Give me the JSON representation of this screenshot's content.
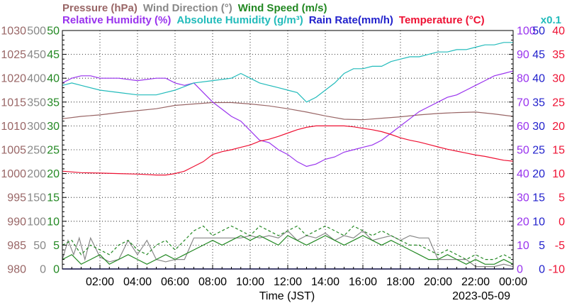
{
  "header": {
    "row1": [
      {
        "key": "pressure",
        "text": "Pressure (hPa)",
        "color": "#996666"
      },
      {
        "key": "wind_direction",
        "text": "Wind Direction (°)",
        "color": "#888888"
      },
      {
        "key": "wind_speed",
        "text": "Wind Speed (m/s)",
        "color": "#228822"
      }
    ],
    "row2": [
      {
        "key": "relative_humidity",
        "text": "Relative Humidity (%)",
        "color": "#9933ee"
      },
      {
        "key": "absolute_humidity",
        "text": "Absolute Humidity (g/m³)",
        "color": "#22bbbb"
      },
      {
        "key": "rain_rate",
        "text": "Rain Rate(mm/h)",
        "color": "#2222cc"
      },
      {
        "key": "temperature",
        "text": "Temperature (°C)",
        "color": "#ee1133"
      },
      {
        "key": "absolute_humidity_scale",
        "text": "x0.1",
        "color": "#22bbbb"
      }
    ]
  },
  "footer": {
    "xlabel": "Time (JST)",
    "date": "2023-05-09"
  },
  "chart_data": {
    "type": "line",
    "xlabel": "Time (JST)",
    "x_unit": "hour",
    "xlim": [
      0,
      24
    ],
    "x_ticks": [
      "02:00",
      "04:00",
      "06:00",
      "08:00",
      "10:00",
      "12:00",
      "14:00",
      "16:00",
      "18:00",
      "20:00",
      "22:00",
      "00:00"
    ],
    "grid": true,
    "axes": {
      "pressure": {
        "side": "left",
        "min": 980,
        "max": 1030,
        "ticks": [
          "980",
          "985",
          "990",
          "995",
          "1000",
          "1005",
          "1010",
          "1015",
          "1020",
          "1025",
          "1030"
        ],
        "color": "#996666"
      },
      "wind_direction": {
        "side": "left",
        "min": 0,
        "max": 500,
        "ticks": [
          "0",
          "50",
          "100",
          "150",
          "200",
          "250",
          "300",
          "350",
          "400",
          "450",
          "500"
        ],
        "color": "#888888"
      },
      "wind_speed": {
        "side": "left",
        "min": 0,
        "max": 50,
        "ticks": [
          "0",
          "5",
          "10",
          "15",
          "20",
          "25",
          "30",
          "35",
          "40",
          "45",
          "50"
        ],
        "color": "#228822"
      },
      "relative_humidity": {
        "side": "right",
        "min": 0,
        "max": 100,
        "ticks": [
          "0",
          "10",
          "20",
          "30",
          "40",
          "50",
          "60",
          "70",
          "80",
          "90",
          "100"
        ],
        "color": "#9933ee"
      },
      "rain_rate": {
        "side": "right",
        "min": 0,
        "max": 50,
        "ticks": [
          "0",
          "5",
          "10",
          "15",
          "20",
          "25",
          "30",
          "35",
          "40",
          "45",
          "50"
        ],
        "color": "#2222cc"
      },
      "temperature": {
        "side": "right",
        "min": -10,
        "max": 40,
        "ticks": [
          "-10",
          "-5",
          "0",
          "5",
          "10",
          "15",
          "20",
          "25",
          "30",
          "35",
          "40"
        ],
        "color": "#ee1133"
      }
    },
    "series": [
      {
        "name": "Pressure (hPa)",
        "axis": "pressure",
        "color": "#996666",
        "x": [
          0,
          1,
          2,
          3,
          4,
          5,
          6,
          7,
          8,
          9,
          10,
          11,
          12,
          13,
          14,
          15,
          16,
          17,
          18,
          19,
          20,
          21,
          22,
          23,
          24
        ],
        "y": [
          1011.5,
          1012,
          1012.3,
          1012.8,
          1013.2,
          1013.6,
          1014.3,
          1014.6,
          1014.9,
          1014.9,
          1014.6,
          1014.2,
          1013.6,
          1012.9,
          1012.1,
          1011.4,
          1011.3,
          1011.6,
          1011.9,
          1012.3,
          1012.6,
          1012.8,
          1012.9,
          1012.5,
          1012
        ]
      },
      {
        "name": "Relative Humidity (%)",
        "axis": "relative_humidity",
        "color": "#9933ee",
        "x": [
          0,
          0.5,
          1,
          1.5,
          2,
          3,
          4,
          5,
          5.5,
          6,
          6.5,
          7,
          7.5,
          8,
          8.5,
          9,
          9.5,
          10,
          10.5,
          11,
          11.5,
          12,
          12.5,
          13,
          13.5,
          14,
          14.5,
          15,
          15.5,
          16,
          16.5,
          17,
          17.5,
          18,
          18.5,
          19,
          19.5,
          20,
          20.5,
          21,
          21.5,
          22,
          22.5,
          23,
          23.5,
          24
        ],
        "y": [
          78,
          80,
          81,
          81,
          80,
          80,
          79,
          80,
          80,
          78,
          77,
          78,
          74,
          70,
          67,
          64,
          62,
          58,
          54,
          53,
          50,
          48,
          45,
          43,
          44,
          46,
          47,
          49,
          50,
          51,
          52,
          54,
          57,
          60,
          63,
          66,
          68,
          70,
          72,
          73,
          75,
          77,
          79,
          81,
          82,
          83
        ]
      },
      {
        "name": "Absolute Humidity (g/m³) x0.1",
        "axis": "relative_humidity",
        "color": "#22bbbb",
        "x": [
          0,
          0.5,
          1,
          2,
          3,
          4,
          5,
          6,
          7,
          8,
          9,
          9.5,
          10,
          10.5,
          11,
          11.5,
          12,
          12.5,
          13,
          13.5,
          14,
          14.5,
          15,
          15.5,
          16,
          16.5,
          17,
          17.5,
          18,
          18.5,
          19,
          19.5,
          20,
          20.5,
          21,
          21.5,
          22,
          22.5,
          23,
          23.5,
          24
        ],
        "y": [
          77,
          78,
          77,
          75,
          74,
          73,
          73,
          75,
          78,
          79,
          80,
          82,
          80,
          78,
          77,
          76,
          75,
          74,
          70,
          72,
          75,
          78,
          82,
          84,
          84,
          85,
          85,
          87,
          88,
          89,
          89,
          90,
          91,
          91,
          92,
          92,
          93,
          94,
          94,
          95,
          95
        ]
      },
      {
        "name": "Temperature (°C)",
        "axis": "temperature",
        "color": "#ee1133",
        "x": [
          0,
          1,
          2,
          3,
          4,
          5,
          5.5,
          6,
          6.5,
          7,
          7.5,
          8,
          8.5,
          9,
          9.5,
          10,
          10.5,
          11,
          11.5,
          12,
          12.5,
          13,
          13.5,
          14,
          14.5,
          15,
          15.5,
          16,
          16.5,
          17,
          17.5,
          18,
          18.5,
          19,
          19.5,
          20,
          20.5,
          21,
          21.5,
          22,
          22.5,
          23,
          23.5,
          24
        ],
        "y": [
          10.5,
          10.2,
          10.1,
          10,
          9.9,
          9.7,
          9.7,
          10,
          10.5,
          11.5,
          12.5,
          14,
          14.6,
          15,
          15.5,
          16,
          16.8,
          17.2,
          17.8,
          18.5,
          19.2,
          19.7,
          20,
          20,
          20,
          20,
          19.8,
          19.5,
          19.2,
          18.8,
          18.2,
          17.5,
          17,
          16.6,
          16.1,
          15.6,
          15.1,
          14.7,
          14.3,
          13.9,
          13.6,
          13.2,
          12.8,
          12.6
        ]
      },
      {
        "name": "Wind Direction (°)",
        "axis": "wind_direction",
        "color": "#888888",
        "x": [
          0,
          0.3,
          0.6,
          0.9,
          1.2,
          1.5,
          2,
          2.5,
          3,
          3.5,
          4,
          4.5,
          5,
          5.5,
          6,
          6.5,
          7,
          7.5,
          8,
          8.5,
          9,
          9.5,
          10,
          10.5,
          11,
          11.5,
          12,
          12.5,
          13,
          13.5,
          14,
          14.5,
          15,
          15.5,
          16,
          16.5,
          17,
          17.5,
          18,
          18.5,
          19,
          19.5,
          20,
          20.5,
          21,
          21.5,
          22,
          22.5,
          23,
          23.5,
          24
        ],
        "y": [
          20,
          60,
          30,
          65,
          20,
          65,
          25,
          15,
          20,
          60,
          30,
          60,
          20,
          15,
          20,
          20,
          65,
          65,
          65,
          65,
          65,
          65,
          70,
          65,
          70,
          65,
          80,
          60,
          70,
          65,
          75,
          60,
          70,
          65,
          80,
          60,
          65,
          70,
          60,
          70,
          65,
          65,
          20,
          20,
          20,
          20,
          5,
          5,
          5,
          10,
          5
        ]
      },
      {
        "name": "Wind Speed (m/s)",
        "axis": "wind_speed",
        "color": "#228822",
        "x": [
          0,
          0.5,
          1,
          1.5,
          2,
          2.5,
          3,
          3.5,
          4,
          4.5,
          5,
          5.5,
          6,
          6.5,
          7,
          7.5,
          8,
          8.5,
          9,
          9.5,
          10,
          10.5,
          11,
          11.5,
          12,
          12.5,
          13,
          13.5,
          14,
          14.5,
          15,
          15.5,
          16,
          16.5,
          17,
          17.5,
          18,
          18.5,
          19,
          19.5,
          20,
          20.5,
          21,
          21.5,
          22,
          22.5,
          23,
          23.5,
          24
        ],
        "y": [
          2,
          3,
          1,
          2,
          3,
          1,
          2,
          3,
          2,
          1,
          2,
          3,
          2,
          3,
          4,
          5,
          6,
          5,
          6,
          7,
          6,
          7,
          6,
          5,
          7,
          6,
          5,
          6,
          7,
          6,
          5,
          6,
          7,
          6,
          5,
          6,
          5,
          4,
          3,
          2,
          2,
          3,
          2,
          1,
          2,
          1,
          1,
          2,
          1
        ]
      },
      {
        "name": "Wind Speed gust (m/s)",
        "axis": "wind_speed",
        "color": "#228822",
        "dash": true,
        "x": [
          0,
          0.5,
          1,
          1.5,
          2,
          2.5,
          3,
          3.5,
          4,
          4.5,
          5,
          5.5,
          6,
          6.5,
          7,
          7.5,
          8,
          8.5,
          9,
          9.5,
          10,
          10.5,
          11,
          11.5,
          12,
          12.5,
          13,
          13.5,
          14,
          14.5,
          15,
          15.5,
          16,
          16.5,
          17,
          17.5,
          18,
          18.5,
          19,
          19.5,
          20,
          20.5,
          21,
          21.5,
          22,
          22.5,
          23,
          23.5,
          24
        ],
        "y": [
          5,
          6,
          3,
          5,
          4,
          3,
          5,
          6,
          4,
          3,
          5,
          6,
          4,
          6,
          8,
          9,
          7,
          8,
          9,
          8,
          7,
          9,
          8,
          7,
          8,
          9,
          7,
          8,
          9,
          8,
          7,
          9,
          8,
          7,
          8,
          7,
          6,
          5,
          5,
          4,
          3,
          4,
          3,
          2,
          3,
          2,
          2,
          3,
          2
        ]
      },
      {
        "name": "Rain Rate(mm/h)",
        "axis": "rain_rate",
        "color": "#2222cc",
        "x": [
          0,
          24
        ],
        "y": [
          0,
          0
        ]
      }
    ]
  }
}
